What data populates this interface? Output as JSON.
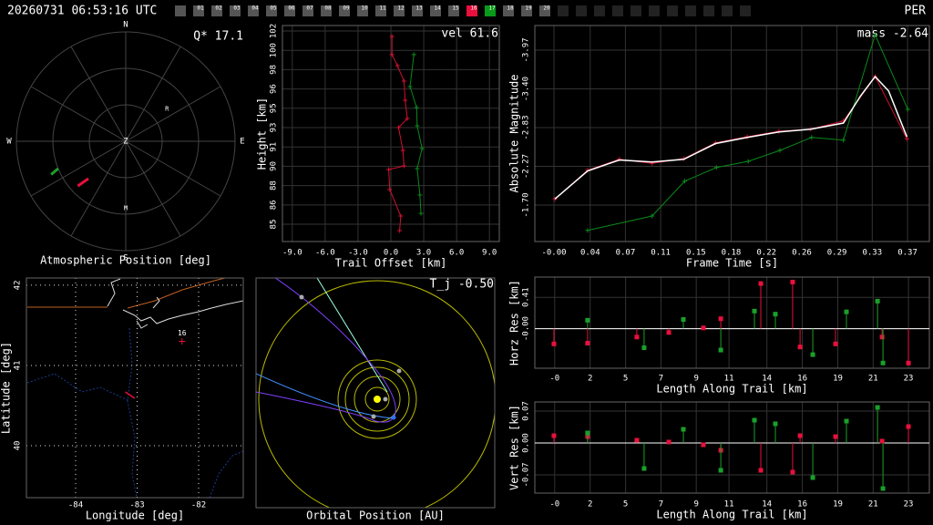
{
  "header": {
    "timestamp": "20260731 06:53:16 UTC",
    "station": "PER",
    "frames": [
      "01",
      "02",
      "03",
      "04",
      "05",
      "06",
      "07",
      "08",
      "09",
      "10",
      "11",
      "12",
      "13",
      "14",
      "15",
      "16",
      "17",
      "18",
      "19",
      "20"
    ],
    "frame_colors": [
      "#555555",
      "#555555",
      "#555555",
      "#555555",
      "#555555",
      "#555555",
      "#555555",
      "#555555",
      "#555555",
      "#555555",
      "#555555",
      "#555555",
      "#555555",
      "#555555",
      "#555555",
      "#e8103c",
      "#0a9a1a",
      "#555555",
      "#555555",
      "#555555"
    ]
  },
  "chart_data": [
    {
      "type": "polar",
      "xlabel": "Atmospheric Position [deg]",
      "annotation": "Q* 17.1",
      "directions": [
        "N",
        "E",
        "S",
        "W"
      ],
      "zenith": "Z",
      "alt_ticks": [
        0,
        30,
        60
      ],
      "az_ticks": [
        0,
        30,
        60,
        90,
        120,
        150,
        180,
        210,
        240,
        270,
        300,
        330
      ],
      "markers": [
        {
          "label": "R",
          "az": 52,
          "alt": 47
        },
        {
          "label": "M",
          "az": 180,
          "alt": 35
        }
      ],
      "series": [
        {
          "color": "#1aa02a",
          "x": [
            246,
            248
          ],
          "values": [
            22.8,
            30
          ]
        },
        {
          "color": "#e8103c",
          "x": [
            227,
            225
          ],
          "values": [
            36,
            46.5
          ]
        }
      ]
    },
    {
      "type": "line",
      "annotation": "vel 61.6",
      "xlabel": "Trail Offset [km]",
      "ylabel": "Height [km]",
      "grid": true,
      "xlim": [
        -9.9,
        9.9
      ],
      "xticks": [
        {
          "value": -9,
          "label": "-9.0"
        },
        {
          "value": -6,
          "label": "-6.0"
        },
        {
          "value": -3,
          "label": "-3.0"
        },
        {
          "value": 0,
          "label": "0.0"
        },
        {
          "value": 3,
          "label": "3.0"
        },
        {
          "value": 6,
          "label": "6.0"
        },
        {
          "value": 9,
          "label": "9.0"
        }
      ],
      "ylim": [
        83.03,
        102.03
      ],
      "yticks": [
        {
          "value": 84.55,
          "label": "85"
        },
        {
          "value": 86.25,
          "label": "86"
        },
        {
          "value": 87.95,
          "label": "88"
        },
        {
          "value": 89.65,
          "label": "90"
        },
        {
          "value": 91.35,
          "label": "91"
        },
        {
          "value": 93.05,
          "label": "93"
        },
        {
          "value": 94.75,
          "label": "95"
        },
        {
          "value": 96.45,
          "label": "96"
        },
        {
          "value": 98.15,
          "label": "98"
        },
        {
          "value": 99.85,
          "label": "100"
        },
        {
          "value": 101.55,
          "label": "102"
        }
      ],
      "series": [
        {
          "color": "#d01030",
          "x": [
            0.1,
            0.1,
            0.6,
            1.2,
            1.3,
            1.5,
            0.7,
            1.1,
            1.2,
            -0.2,
            -0.1,
            0.9,
            0.8
          ],
          "values": [
            101.07,
            99.47,
            98.5,
            97.14,
            95.46,
            93.85,
            93.05,
            91.05,
            89.68,
            89.36,
            87.6,
            85.27,
            83.99
          ]
        },
        {
          "color": "#0a8a1a",
          "x": [
            2.1,
            1.75,
            2.35,
            2.4,
            2.85,
            2.4,
            2.65,
            2.75
          ],
          "values": [
            99.47,
            96.66,
            94.81,
            93.21,
            91.21,
            89.44,
            87.12,
            85.51
          ]
        }
      ]
    },
    {
      "type": "line",
      "annotation": "mass -2.64",
      "xlabel": "Frame Time [s]",
      "ylabel": "Absolute Magnitude",
      "grid": true,
      "xlim": [
        -0.0209,
        0.3894
      ],
      "xticks": [
        {
          "value": -0.001,
          "label": "-0.00"
        },
        {
          "value": 0.0367,
          "label": "0.04"
        },
        {
          "value": 0.0733,
          "label": "0.07"
        },
        0.11,
        {
          "value": 0.1467,
          "label": "0.15"
        },
        {
          "value": 0.1833,
          "label": "0.18"
        },
        0.22,
        {
          "value": 0.2567,
          "label": "0.26"
        },
        {
          "value": 0.2933,
          "label": "0.29"
        },
        0.33,
        {
          "value": 0.3667,
          "label": "0.37"
        }
      ],
      "ylim": [
        -1.167,
        -4.327
      ],
      "yticks": [
        {
          "value": -3.967,
          "label": "-3.97"
        },
        {
          "value": -3.4,
          "label": "-3.40"
        },
        {
          "value": -2.833,
          "label": "-2.83"
        },
        {
          "value": -2.267,
          "label": "-2.27"
        },
        {
          "value": -1.7,
          "label": "-1.70"
        }
      ],
      "series": [
        {
          "color": "#d01030",
          "x": [
            0,
            0.034,
            0.067,
            0.101,
            0.134,
            0.167,
            0.2,
            0.233,
            0.266,
            0.3,
            0.333,
            0.366
          ],
          "values": [
            -1.79,
            -2.21,
            -2.37,
            -2.31,
            -2.38,
            -2.61,
            -2.7,
            -2.78,
            -2.81,
            -2.93,
            -3.58,
            -2.67
          ]
        },
        {
          "color": "#0a8a1a",
          "x": [
            0.034,
            0.101,
            0.135,
            0.168,
            0.201,
            0.234,
            0.267,
            0.3,
            0.333,
            0.367
          ],
          "values": [
            -1.33,
            -1.54,
            -2.05,
            -2.25,
            -2.34,
            -2.5,
            -2.69,
            -2.65,
            -4.19,
            -3.1
          ]
        },
        {
          "color": "#ffffff",
          "markers": false,
          "x": [
            0,
            0.034,
            0.067,
            0.101,
            0.134,
            0.167,
            0.2,
            0.233,
            0.266,
            0.3,
            0.318,
            0.333,
            0.347,
            0.366
          ],
          "values": [
            -1.79,
            -2.2,
            -2.36,
            -2.33,
            -2.37,
            -2.6,
            -2.69,
            -2.77,
            -2.81,
            -2.9,
            -3.3,
            -3.58,
            -3.37,
            -2.7
          ]
        }
      ]
    },
    {
      "type": "map",
      "xlabel": "Longitude [deg]",
      "ylabel": "Latitude [deg]",
      "grid": true,
      "xlim": [
        -84.8,
        -81.274
      ],
      "xticks": [
        -84,
        -83,
        -82
      ],
      "ylim": [
        39.352,
        42.09
      ],
      "yticks": [
        42,
        41,
        40
      ],
      "markers": [
        {
          "label": "16",
          "x": -82.27,
          "y": 41.3,
          "color": "#e8103c"
        }
      ],
      "series": [
        {
          "color": "#e8103c",
          "x": [
            -83.19,
            -83.04
          ],
          "values": [
            40.67,
            40.59
          ]
        }
      ]
    },
    {
      "type": "orbit",
      "xlabel": "Orbital Position [AU]",
      "annotation": "T_j -0.50"
    },
    {
      "type": "stem",
      "xlabel": "Length Along Trail [km]",
      "ylabel": "Horz Res [km]",
      "grid": true,
      "xlim": [
        -1.32,
        24.71
      ],
      "xticks": [
        {
          "value": -0.01,
          "label": "-0"
        },
        {
          "value": 2.33,
          "label": "2"
        },
        {
          "value": 4.67,
          "label": "5"
        },
        {
          "value": 7,
          "label": "7"
        },
        {
          "value": 9.33,
          "label": "9"
        },
        {
          "value": 11.49,
          "label": "11"
        },
        {
          "value": 13.99,
          "label": "14"
        },
        {
          "value": 16.33,
          "label": "16"
        },
        {
          "value": 18.67,
          "label": "19"
        },
        {
          "value": 21,
          "label": "21"
        },
        {
          "value": 23.33,
          "label": "23"
        }
      ],
      "ylim": [
        -0.518,
        0.675
      ],
      "yticks": [
        {
          "value": 0,
          "label": "-0.00"
        },
        0.41
      ],
      "series": [
        {
          "color": "#e8103c",
          "x": [
            -0.06,
            2.16,
            5.41,
            7.52,
            9.8,
            10.95,
            13.59,
            15.69,
            16.18,
            18.52,
            21.59,
            23.33
          ],
          "values": [
            -0.2,
            -0.19,
            -0.11,
            -0.05,
            0.01,
            0.13,
            0.59,
            0.61,
            -0.24,
            -0.2,
            -0.11,
            -0.45
          ]
        },
        {
          "color": "#1aa02a",
          "x": [
            2.16,
            5.89,
            8.48,
            10.95,
            13.17,
            14.55,
            17.02,
            19.24,
            21.29,
            21.65
          ],
          "values": [
            0.11,
            -0.25,
            0.12,
            -0.28,
            0.23,
            0.19,
            -0.34,
            0.22,
            0.36,
            -0.45
          ]
        }
      ]
    },
    {
      "type": "stem",
      "xlabel": "Length Along Trail [km]",
      "ylabel": "Vert Res [km]",
      "grid": true,
      "xlim": [
        -1.32,
        24.71
      ],
      "xticks": [
        {
          "value": -0.01,
          "label": "-0"
        },
        {
          "value": 2.33,
          "label": "2"
        },
        {
          "value": 4.67,
          "label": "5"
        },
        {
          "value": 7,
          "label": "7"
        },
        {
          "value": 9.33,
          "label": "9"
        },
        {
          "value": 11.49,
          "label": "11"
        },
        {
          "value": 13.99,
          "label": "14"
        },
        {
          "value": 16.33,
          "label": "16"
        },
        {
          "value": 18.67,
          "label": "19"
        },
        {
          "value": 21,
          "label": "21"
        },
        {
          "value": 23.33,
          "label": "23"
        }
      ],
      "ylim": [
        -0.11,
        0.09
      ],
      "yticks": [
        0.07,
        {
          "value": 0,
          "label": "0.00"
        },
        -0.07
      ],
      "series": [
        {
          "color": "#e8103c",
          "x": [
            -0.06,
            2.16,
            5.41,
            7.52,
            9.8,
            10.95,
            13.59,
            15.69,
            16.18,
            18.52,
            21.59,
            23.33
          ],
          "values": [
            0.016,
            0.014,
            0.006,
            0.002,
            -0.004,
            -0.016,
            -0.06,
            -0.064,
            0.016,
            0.014,
            0.004,
            0.036
          ]
        },
        {
          "color": "#1aa02a",
          "x": [
            2.16,
            5.89,
            8.48,
            10.95,
            13.17,
            14.55,
            17.02,
            19.24,
            21.29,
            21.65
          ],
          "values": [
            0.022,
            -0.056,
            0.03,
            -0.06,
            0.05,
            0.042,
            -0.076,
            0.048,
            0.078,
            -0.1
          ]
        }
      ]
    }
  ]
}
